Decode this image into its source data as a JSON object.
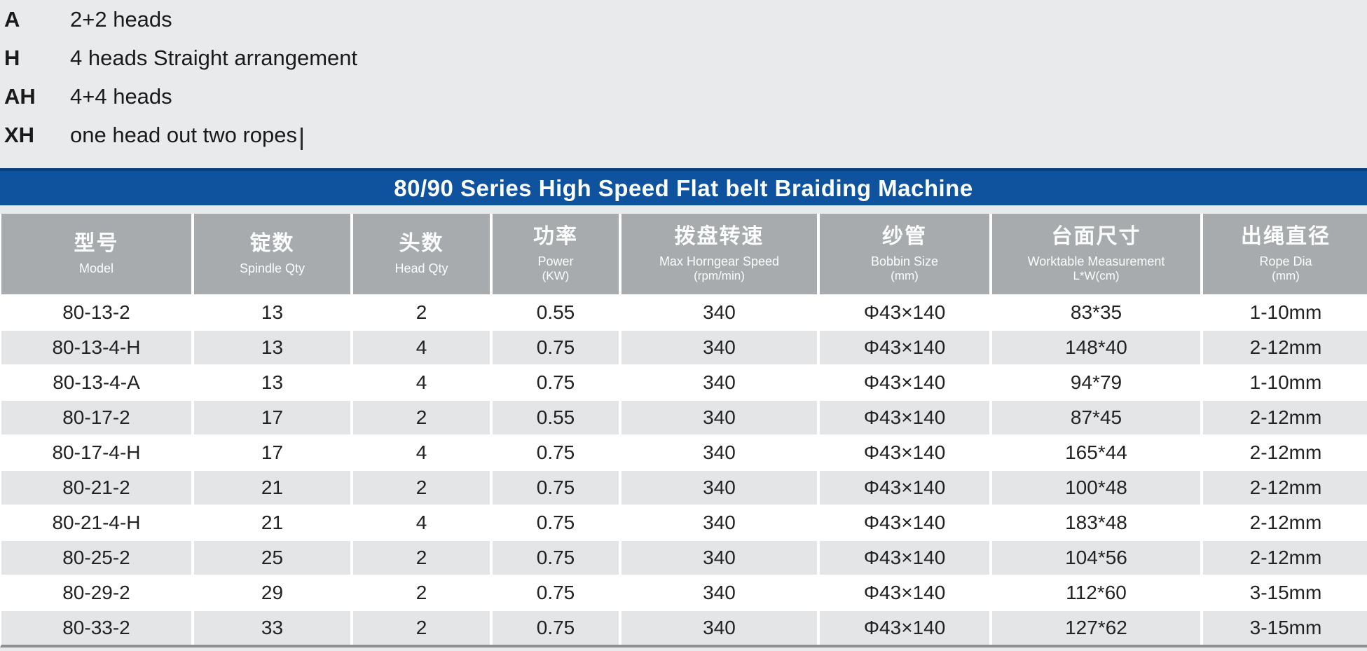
{
  "legend": {
    "items": [
      {
        "key": "A",
        "desc": "2+2 heads"
      },
      {
        "key": "H",
        "desc": "4 heads Straight arrangement"
      },
      {
        "key": "AH",
        "desc": "4+4 heads"
      },
      {
        "key": "XH",
        "desc": "one head out two ropes"
      }
    ]
  },
  "table": {
    "title": "80/90 Series High Speed Flat belt Braiding Machine",
    "columns": [
      {
        "cn": "型号",
        "en": "Model",
        "sub": ""
      },
      {
        "cn": "锭数",
        "en": "Spindle Qty",
        "sub": ""
      },
      {
        "cn": "头数",
        "en": "Head Qty",
        "sub": ""
      },
      {
        "cn": "功率",
        "en": "Power",
        "sub": "(KW)"
      },
      {
        "cn": "拨盘转速",
        "en": "Max Horngear Speed",
        "sub": "(rpm/min)"
      },
      {
        "cn": "纱管",
        "en": "Bobbin Size",
        "sub": "(mm)"
      },
      {
        "cn": "台面尺寸",
        "en": "Worktable Measurement",
        "sub": "L*W(cm)"
      },
      {
        "cn": "出绳直径",
        "en": "Rope Dia",
        "sub": "(mm)"
      }
    ],
    "rows": [
      [
        "80-13-2",
        "13",
        "2",
        "0.55",
        "340",
        "Φ43×140",
        "83*35",
        "1-10mm"
      ],
      [
        "80-13-4-H",
        "13",
        "4",
        "0.75",
        "340",
        "Φ43×140",
        "148*40",
        "2-12mm"
      ],
      [
        "80-13-4-A",
        "13",
        "4",
        "0.75",
        "340",
        "Φ43×140",
        "94*79",
        "1-10mm"
      ],
      [
        "80-17-2",
        "17",
        "2",
        "0.55",
        "340",
        "Φ43×140",
        "87*45",
        "2-12mm"
      ],
      [
        "80-17-4-H",
        "17",
        "4",
        "0.75",
        "340",
        "Φ43×140",
        "165*44",
        "2-12mm"
      ],
      [
        "80-21-2",
        "21",
        "2",
        "0.75",
        "340",
        "Φ43×140",
        "100*48",
        "2-12mm"
      ],
      [
        "80-21-4-H",
        "21",
        "4",
        "0.75",
        "340",
        "Φ43×140",
        "183*48",
        "2-12mm"
      ],
      [
        "80-25-2",
        "25",
        "2",
        "0.75",
        "340",
        "Φ43×140",
        "104*56",
        "2-12mm"
      ],
      [
        "80-29-2",
        "29",
        "2",
        "0.75",
        "340",
        "Φ43×140",
        "112*60",
        "3-15mm"
      ],
      [
        "80-33-2",
        "33",
        "2",
        "0.75",
        "340",
        "Φ43×140",
        "127*62",
        "3-15mm"
      ]
    ]
  },
  "colors": {
    "page_bg": "#e8eaec",
    "title_bar_blue": "#0f539e",
    "title_bar_top_border": "#0b3e7c",
    "header_gray": "#a8abad",
    "row_alt_gray": "#e3e5e7",
    "row_white": "#ffffff",
    "table_bottom_border": "#8d9092",
    "text_dark": "#222222"
  }
}
